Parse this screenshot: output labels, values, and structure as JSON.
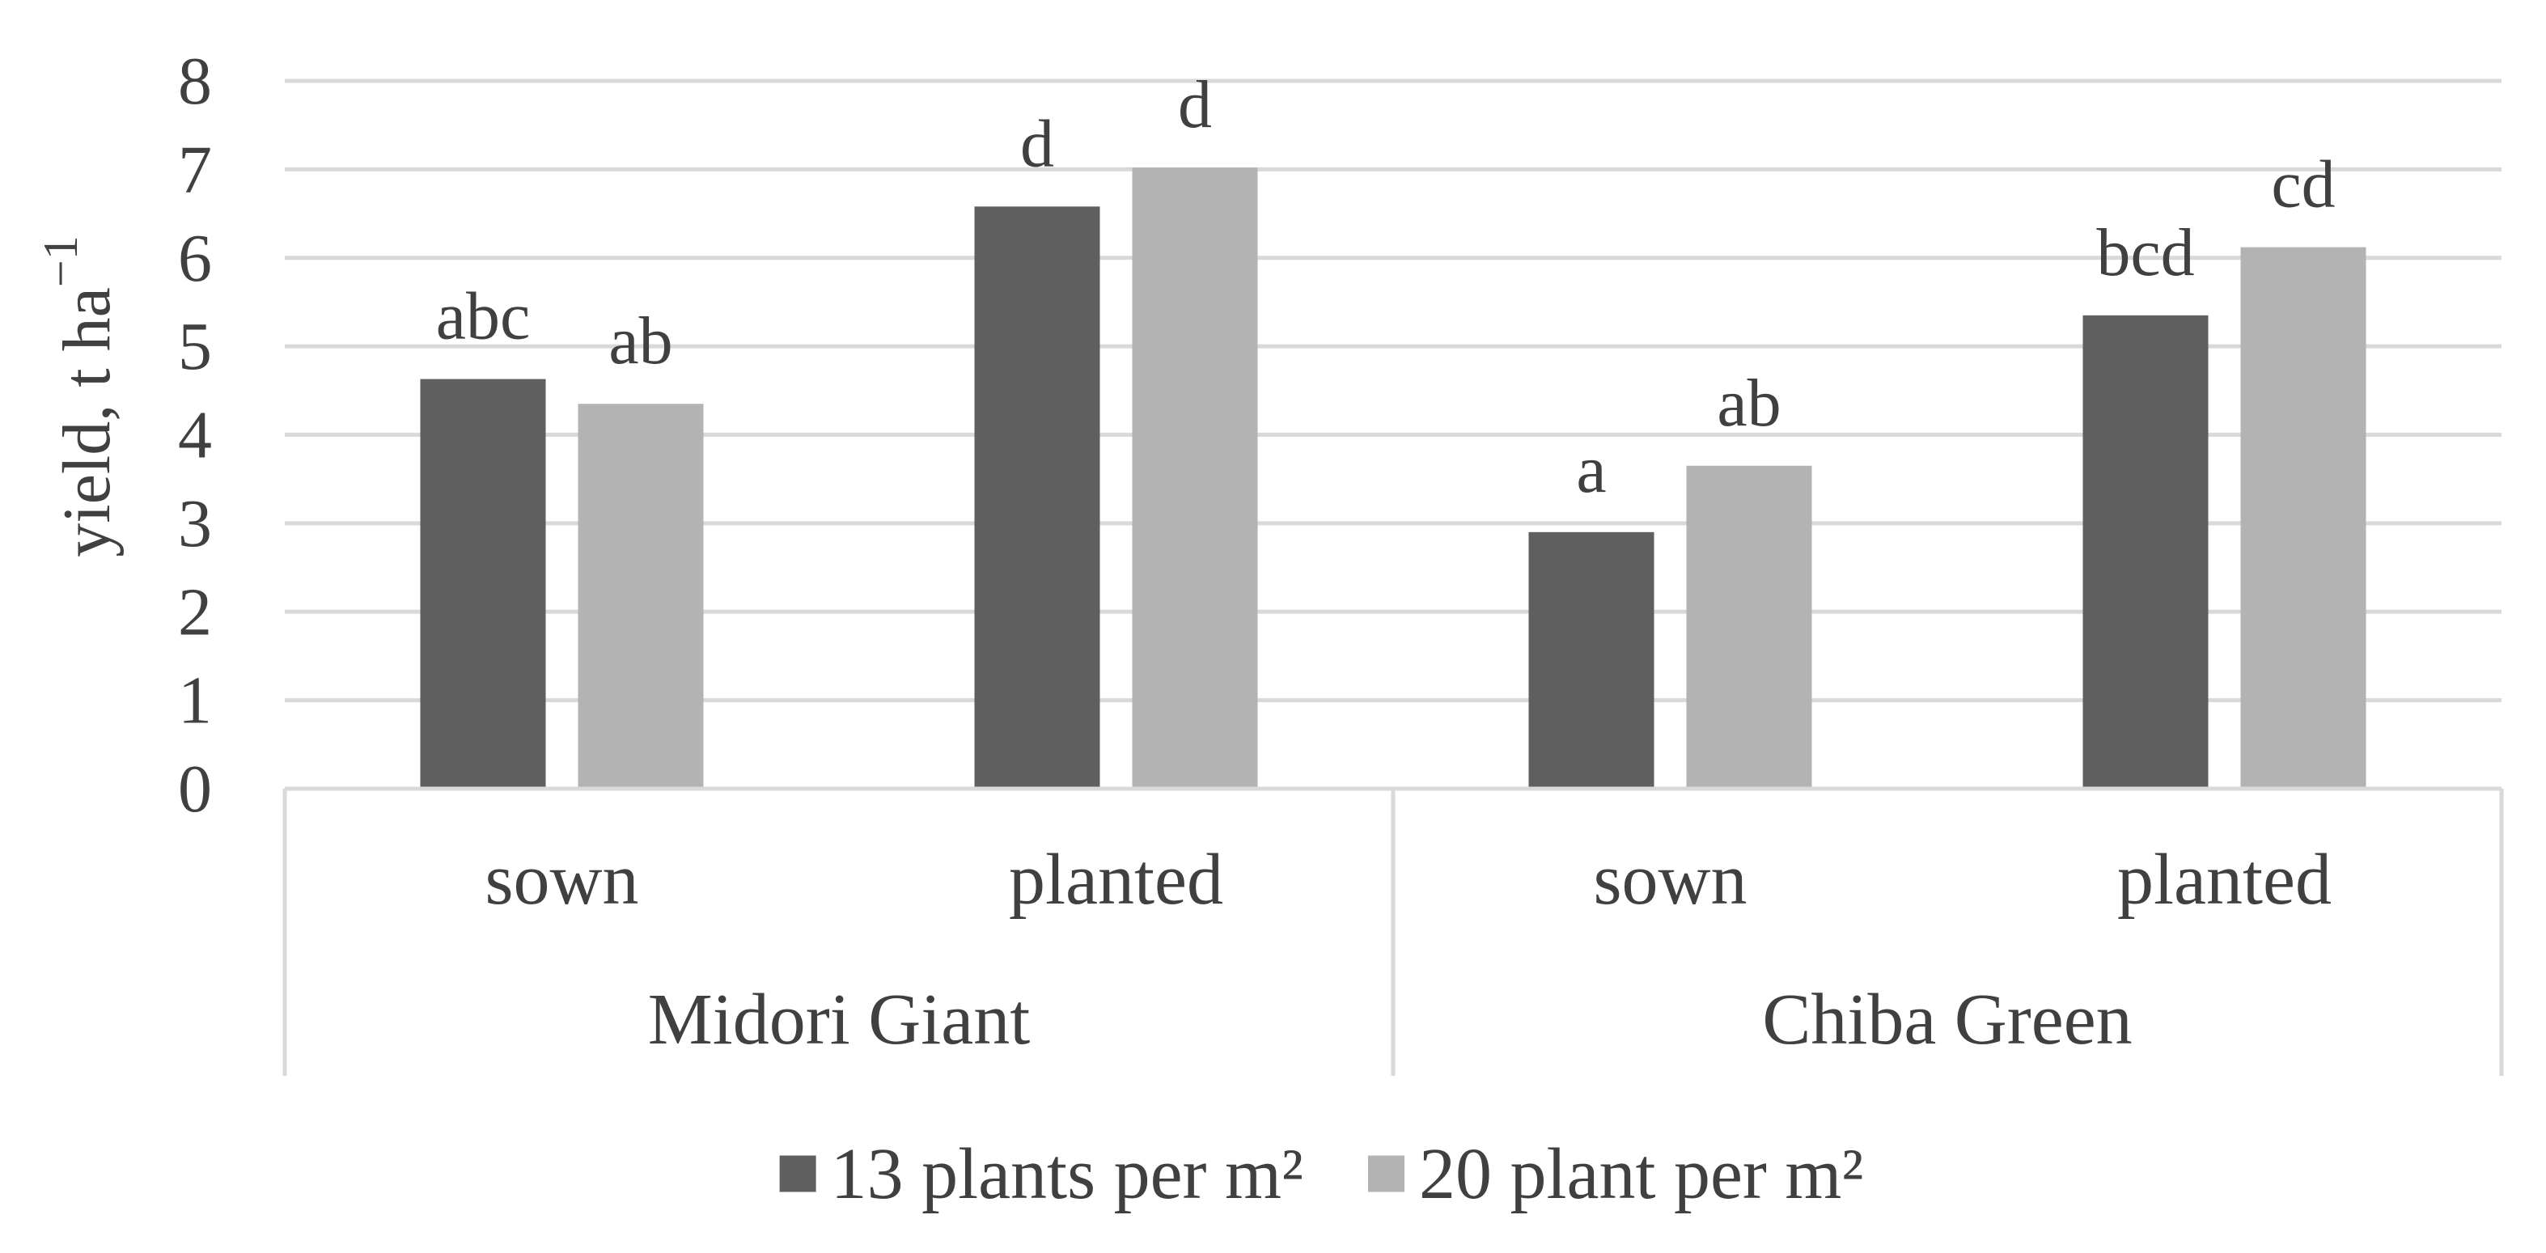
{
  "chart_data": {
    "type": "bar",
    "title": "",
    "xlabel": "",
    "ylabel": "yield, t ha",
    "ylabel_superscript": "−1",
    "ylim": [
      0,
      8
    ],
    "yticks": [
      0,
      1,
      2,
      3,
      4,
      5,
      6,
      7,
      8
    ],
    "gridlines": true,
    "legend_position": "bottom",
    "groups": [
      {
        "name": "Midori Giant",
        "categories": [
          "sown",
          "planted"
        ]
      },
      {
        "name": "Chiba Green",
        "categories": [
          "sown",
          "planted"
        ]
      }
    ],
    "categories": [
      "sown",
      "planted",
      "sown",
      "planted"
    ],
    "series": [
      {
        "name": "13 plants per m²",
        "color": "#5f5f5f",
        "values": [
          4.63,
          6.58,
          2.9,
          5.35
        ],
        "labels": [
          "abc",
          "d",
          "a",
          "bcd"
        ]
      },
      {
        "name": "20 plant per m²",
        "color": "#b3b3b3",
        "values": [
          4.35,
          7.02,
          3.65,
          6.12
        ],
        "labels": [
          "ab",
          "d",
          "ab",
          "cd"
        ]
      }
    ]
  }
}
